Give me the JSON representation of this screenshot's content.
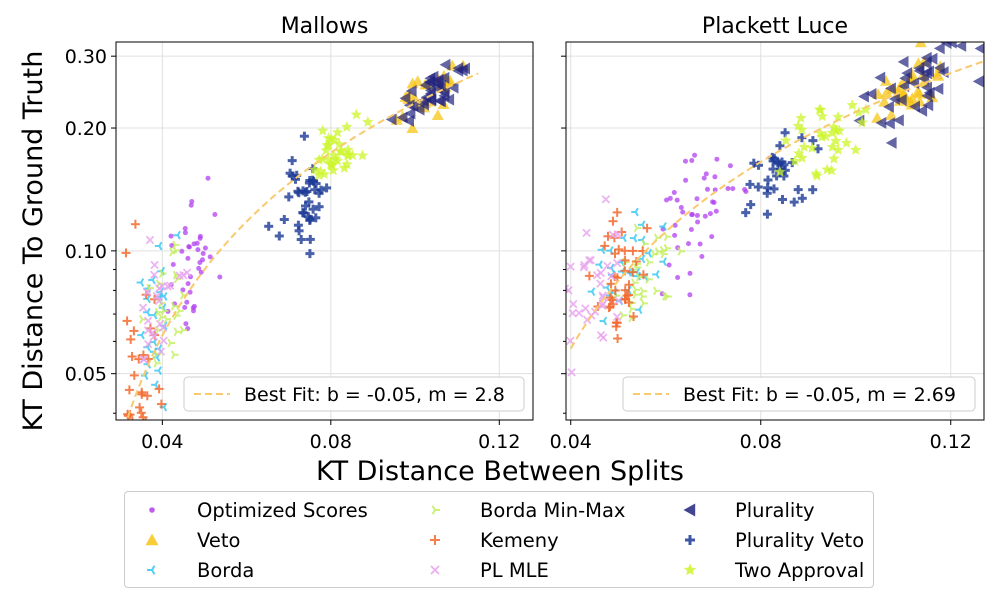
{
  "figure": {
    "ylabel": "KT Distance To Ground Truth",
    "xlabel": "KT Distance Between Splits"
  },
  "colors": {
    "Optimized Scores": "#b140f0",
    "Veto": "#f7c515",
    "Borda": "#33c6f2",
    "Borda Min-Max": "#c4ef60",
    "Kemeny": "#f46a2e",
    "PL MLE": "#e8a2ee",
    "Plurality": "#22237f",
    "Plurality Veto": "#1c3a96",
    "Two Approval": "#ccf52a",
    "best_fit": "#f9c96d"
  },
  "legend": [
    {
      "name": "Optimized Scores",
      "marker": "dot-icon"
    },
    {
      "name": "Veto",
      "marker": "triangle-up-icon"
    },
    {
      "name": "Borda",
      "marker": "tri-left-icon"
    },
    {
      "name": "Borda Min-Max",
      "marker": "tri-right-icon"
    },
    {
      "name": "Kemeny",
      "marker": "plus-icon"
    },
    {
      "name": "PL MLE",
      "marker": "x-icon"
    },
    {
      "name": "Plurality",
      "marker": "triangle-left-icon"
    },
    {
      "name": "Plurality Veto",
      "marker": "plus-filled-icon"
    },
    {
      "name": "Two Approval",
      "marker": "star-icon"
    }
  ],
  "chart_data": [
    {
      "type": "scatter",
      "title": "Mallows",
      "xscale": "linear",
      "yscale": "log",
      "xlim": [
        0.029,
        0.128
      ],
      "ylim": [
        0.0385,
        0.325
      ],
      "xticks": [
        0.04,
        0.08,
        0.12
      ],
      "xtick_labels": [
        "0.04",
        "0.08",
        "0.12"
      ],
      "yticks": [
        0.05,
        0.1,
        0.2,
        0.3
      ],
      "ytick_labels": [
        "0.05",
        "0.10",
        "0.20",
        "0.30"
      ],
      "grid": true,
      "best_fit": {
        "label": "Best Fit: b = -0.05, m = 2.8",
        "b": -0.05,
        "m": 2.8,
        "x_range": [
          0.031,
          0.115
        ]
      },
      "series": [
        {
          "name": "Optimized Scores",
          "center": [
            0.047,
            0.092
          ],
          "spread": [
            0.004,
            0.09
          ],
          "n": 40
        },
        {
          "name": "Veto",
          "center": [
            0.104,
            0.245
          ],
          "spread": [
            0.005,
            0.03
          ],
          "n": 26
        },
        {
          "name": "Borda",
          "center": [
            0.038,
            0.07
          ],
          "spread": [
            0.0025,
            0.1
          ],
          "n": 25
        },
        {
          "name": "Borda Min-Max",
          "center": [
            0.041,
            0.072
          ],
          "spread": [
            0.0025,
            0.09
          ],
          "n": 25
        },
        {
          "name": "Kemeny",
          "center": [
            0.035,
            0.048
          ],
          "spread": [
            0.002,
            0.14
          ],
          "n": 35
        },
        {
          "name": "PL MLE",
          "center": [
            0.038,
            0.068
          ],
          "spread": [
            0.0035,
            0.08
          ],
          "n": 25
        },
        {
          "name": "Plurality",
          "center": [
            0.104,
            0.248
          ],
          "spread": [
            0.004,
            0.025
          ],
          "n": 38
        },
        {
          "name": "Plurality Veto",
          "center": [
            0.074,
            0.137
          ],
          "spread": [
            0.003,
            0.06
          ],
          "n": 40
        },
        {
          "name": "Two Approval",
          "center": [
            0.082,
            0.18
          ],
          "spread": [
            0.003,
            0.04
          ],
          "n": 35
        }
      ]
    },
    {
      "type": "scatter",
      "title": "Plackett Luce",
      "xscale": "linear",
      "yscale": "log",
      "xlim": [
        0.039,
        0.127
      ],
      "ylim": [
        0.0385,
        0.325
      ],
      "xticks": [
        0.04,
        0.08,
        0.12
      ],
      "xtick_labels": [
        "0.04",
        "0.08",
        "0.12"
      ],
      "yticks": [
        0.05,
        0.1,
        0.2,
        0.3
      ],
      "ytick_labels": [
        "",
        "",
        "",
        ""
      ],
      "grid": true,
      "best_fit": {
        "label": "Best Fit: b = -0.05, m = 2.69",
        "b": -0.05,
        "m": 2.69,
        "x_range": [
          0.04,
          0.127
        ]
      },
      "series": [
        {
          "name": "Optimized Scores",
          "center": [
            0.066,
            0.125
          ],
          "spread": [
            0.004,
            0.08
          ],
          "n": 45
        },
        {
          "name": "Veto",
          "center": [
            0.111,
            0.245
          ],
          "spread": [
            0.004,
            0.04
          ],
          "n": 35
        },
        {
          "name": "Borda",
          "center": [
            0.053,
            0.091
          ],
          "spread": [
            0.004,
            0.05
          ],
          "n": 30
        },
        {
          "name": "Borda Min-Max",
          "center": [
            0.056,
            0.09
          ],
          "spread": [
            0.004,
            0.05
          ],
          "n": 30
        },
        {
          "name": "Kemeny",
          "center": [
            0.05,
            0.09
          ],
          "spread": [
            0.003,
            0.07
          ],
          "n": 40
        },
        {
          "name": "PL MLE",
          "center": [
            0.045,
            0.084
          ],
          "spread": [
            0.0035,
            0.08
          ],
          "n": 35
        },
        {
          "name": "Plurality",
          "center": [
            0.113,
            0.255
          ],
          "spread": [
            0.005,
            0.04
          ],
          "n": 40
        },
        {
          "name": "Plurality Veto",
          "center": [
            0.084,
            0.158
          ],
          "spread": [
            0.004,
            0.05
          ],
          "n": 35
        },
        {
          "name": "Two Approval",
          "center": [
            0.093,
            0.19
          ],
          "spread": [
            0.004,
            0.05
          ],
          "n": 35
        }
      ]
    }
  ]
}
